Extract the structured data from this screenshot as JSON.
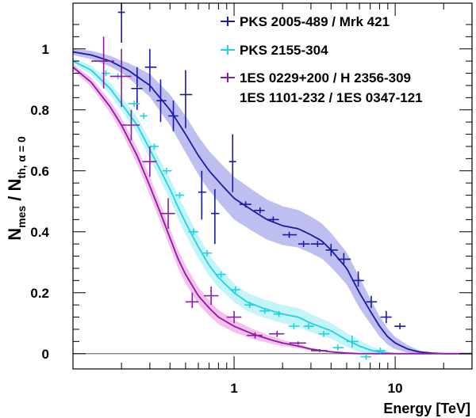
{
  "chart_data": {
    "type": "line",
    "xlabel": "Energy [TeV]",
    "ylabel": {
      "main": "N",
      "main_sub": "mes",
      "sep": " / N",
      "den_sub": "th, α = 0"
    },
    "xscale": "log",
    "xlim": [
      0.1,
      30
    ],
    "ylim": [
      -0.05,
      1.15
    ],
    "x_ticks": [
      1,
      10
    ],
    "x_tick_labels": [
      "1",
      "10"
    ],
    "y_ticks": [
      0,
      0.2,
      0.4,
      0.6,
      0.8,
      1
    ],
    "y_tick_labels": [
      "0",
      "0.2",
      "0.4",
      "0.6",
      "0.8",
      "1"
    ],
    "legend_position": "top-right",
    "series": [
      {
        "name": "PKS 2005-489 / Mrk 421",
        "color": "#1a1aa6",
        "band_color": "#b3b3ee",
        "curve": [
          [
            0.1,
            0.99
          ],
          [
            0.13,
            0.98
          ],
          [
            0.17,
            0.96
          ],
          [
            0.22,
            0.93
          ],
          [
            0.3,
            0.88
          ],
          [
            0.4,
            0.8
          ],
          [
            0.5,
            0.72
          ],
          [
            0.6,
            0.65
          ],
          [
            0.7,
            0.6
          ],
          [
            0.85,
            0.55
          ],
          [
            1.0,
            0.51
          ],
          [
            1.3,
            0.47
          ],
          [
            1.6,
            0.44
          ],
          [
            2.0,
            0.42
          ],
          [
            2.5,
            0.41
          ],
          [
            3.0,
            0.39
          ],
          [
            3.5,
            0.37
          ],
          [
            4.0,
            0.34
          ],
          [
            5.0,
            0.28
          ],
          [
            6.0,
            0.2
          ],
          [
            7.0,
            0.14
          ],
          [
            8.0,
            0.09
          ],
          [
            9.0,
            0.055
          ],
          [
            10.0,
            0.035
          ],
          [
            12.0,
            0.015
          ],
          [
            14.0,
            0.006
          ],
          [
            17.0,
            0.002
          ],
          [
            20.0,
            0.0
          ],
          [
            30.0,
            0.0
          ]
        ],
        "band_width": [
          [
            0.1,
            0.01
          ],
          [
            0.2,
            0.02
          ],
          [
            0.5,
            0.06
          ],
          [
            1.0,
            0.07
          ],
          [
            3.0,
            0.06
          ],
          [
            6.0,
            0.05
          ],
          [
            10.0,
            0.02
          ],
          [
            16.0,
            0.0
          ],
          [
            30.0,
            0.0
          ]
        ],
        "points": [
          {
            "x": 0.2,
            "y": 1.12,
            "xlo": 0.19,
            "xhi": 0.21,
            "ylo": 1.02,
            "yhi": 1.2
          },
          {
            "x": 0.25,
            "y": 0.87,
            "xlo": 0.23,
            "xhi": 0.27,
            "ylo": 0.8,
            "yhi": 0.94
          },
          {
            "x": 0.3,
            "y": 0.94,
            "xlo": 0.28,
            "xhi": 0.33,
            "ylo": 0.86,
            "yhi": 1.0
          },
          {
            "x": 0.35,
            "y": 0.83,
            "xlo": 0.33,
            "xhi": 0.38,
            "ylo": 0.76,
            "yhi": 0.9
          },
          {
            "x": 0.42,
            "y": 0.78,
            "xlo": 0.39,
            "xhi": 0.45,
            "ylo": 0.73,
            "yhi": 0.83
          },
          {
            "x": 0.5,
            "y": 0.85,
            "xlo": 0.46,
            "xhi": 0.55,
            "ylo": 0.74,
            "yhi": 0.93
          },
          {
            "x": 0.63,
            "y": 0.53,
            "xlo": 0.6,
            "xhi": 0.67,
            "ylo": 0.44,
            "yhi": 0.6
          },
          {
            "x": 0.76,
            "y": 0.46,
            "xlo": 0.72,
            "xhi": 0.81,
            "ylo": 0.36,
            "yhi": 0.54
          },
          {
            "x": 0.98,
            "y": 0.63,
            "xlo": 0.93,
            "xhi": 1.03,
            "ylo": 0.53,
            "yhi": 0.72
          },
          {
            "x": 1.18,
            "y": 0.49,
            "xlo": 1.08,
            "xhi": 1.28,
            "ylo": 0.48,
            "yhi": 0.5
          },
          {
            "x": 1.45,
            "y": 0.47,
            "xlo": 1.33,
            "xhi": 1.55,
            "ylo": 0.46,
            "yhi": 0.48
          },
          {
            "x": 1.75,
            "y": 0.44,
            "xlo": 1.6,
            "xhi": 1.9,
            "ylo": 0.43,
            "yhi": 0.45
          },
          {
            "x": 2.2,
            "y": 0.39,
            "xlo": 2.0,
            "xhi": 2.45,
            "ylo": 0.38,
            "yhi": 0.4
          },
          {
            "x": 2.7,
            "y": 0.36,
            "xlo": 2.5,
            "xhi": 2.95,
            "ylo": 0.35,
            "yhi": 0.37
          },
          {
            "x": 3.3,
            "y": 0.36,
            "xlo": 3.0,
            "xhi": 3.6,
            "ylo": 0.35,
            "yhi": 0.37
          },
          {
            "x": 4.0,
            "y": 0.34,
            "xlo": 3.7,
            "xhi": 4.4,
            "ylo": 0.32,
            "yhi": 0.36
          },
          {
            "x": 4.8,
            "y": 0.31,
            "xlo": 4.4,
            "xhi": 5.3,
            "ylo": 0.29,
            "yhi": 0.33
          },
          {
            "x": 5.9,
            "y": 0.24,
            "xlo": 5.4,
            "xhi": 6.4,
            "ylo": 0.22,
            "yhi": 0.27
          },
          {
            "x": 7.1,
            "y": 0.17,
            "xlo": 6.6,
            "xhi": 7.7,
            "ylo": 0.15,
            "yhi": 0.19
          },
          {
            "x": 8.8,
            "y": 0.12,
            "xlo": 8.1,
            "xhi": 9.5,
            "ylo": 0.1,
            "yhi": 0.14
          },
          {
            "x": 10.7,
            "y": 0.09,
            "xlo": 9.9,
            "xhi": 11.6,
            "ylo": 0.08,
            "yhi": 0.1
          }
        ]
      },
      {
        "name": "PKS 2155-304",
        "color": "#1fd3e0",
        "band_color": "#b8f2f6",
        "curve": [
          [
            0.1,
            0.96
          ],
          [
            0.13,
            0.93
          ],
          [
            0.17,
            0.87
          ],
          [
            0.2,
            0.82
          ],
          [
            0.25,
            0.75
          ],
          [
            0.3,
            0.67
          ],
          [
            0.35,
            0.6
          ],
          [
            0.4,
            0.54
          ],
          [
            0.45,
            0.48
          ],
          [
            0.5,
            0.43
          ],
          [
            0.6,
            0.35
          ],
          [
            0.7,
            0.29
          ],
          [
            0.8,
            0.25
          ],
          [
            1.0,
            0.2
          ],
          [
            1.2,
            0.17
          ],
          [
            1.5,
            0.15
          ],
          [
            2.0,
            0.13
          ],
          [
            2.5,
            0.12
          ],
          [
            3.0,
            0.1
          ],
          [
            4.0,
            0.075
          ],
          [
            5.0,
            0.045
          ],
          [
            6.0,
            0.025
          ],
          [
            7.0,
            0.012
          ],
          [
            8.0,
            0.005
          ],
          [
            10.0,
            0.0
          ],
          [
            30.0,
            0.0
          ]
        ],
        "band_width": [
          [
            0.1,
            0.01
          ],
          [
            0.3,
            0.03
          ],
          [
            0.5,
            0.04
          ],
          [
            1.0,
            0.03
          ],
          [
            3.0,
            0.03
          ],
          [
            6.0,
            0.02
          ],
          [
            10.0,
            0.0
          ],
          [
            30.0,
            0.0
          ]
        ],
        "points": [
          {
            "x": 0.16,
            "y": 0.92,
            "xlo": 0.15,
            "xhi": 0.17,
            "ylo": 0.91,
            "yhi": 0.93
          },
          {
            "x": 0.19,
            "y": 0.91,
            "xlo": 0.18,
            "xhi": 0.2,
            "ylo": 0.9,
            "yhi": 0.92
          },
          {
            "x": 0.24,
            "y": 0.82,
            "xlo": 0.22,
            "xhi": 0.26,
            "ylo": 0.81,
            "yhi": 0.83
          },
          {
            "x": 0.275,
            "y": 0.78,
            "xlo": 0.26,
            "xhi": 0.29,
            "ylo": 0.77,
            "yhi": 0.79
          },
          {
            "x": 0.32,
            "y": 0.68,
            "xlo": 0.3,
            "xhi": 0.34,
            "ylo": 0.67,
            "yhi": 0.69
          },
          {
            "x": 0.38,
            "y": 0.6,
            "xlo": 0.36,
            "xhi": 0.41,
            "ylo": 0.59,
            "yhi": 0.61
          },
          {
            "x": 0.46,
            "y": 0.52,
            "xlo": 0.43,
            "xhi": 0.49,
            "ylo": 0.51,
            "yhi": 0.53
          },
          {
            "x": 0.56,
            "y": 0.4,
            "xlo": 0.52,
            "xhi": 0.6,
            "ylo": 0.39,
            "yhi": 0.41
          },
          {
            "x": 0.68,
            "y": 0.33,
            "xlo": 0.64,
            "xhi": 0.73,
            "ylo": 0.32,
            "yhi": 0.34
          },
          {
            "x": 0.83,
            "y": 0.26,
            "xlo": 0.78,
            "xhi": 0.89,
            "ylo": 0.25,
            "yhi": 0.27
          },
          {
            "x": 1.02,
            "y": 0.21,
            "xlo": 0.95,
            "xhi": 1.09,
            "ylo": 0.2,
            "yhi": 0.22
          },
          {
            "x": 1.25,
            "y": 0.16,
            "xlo": 1.16,
            "xhi": 1.34,
            "ylo": 0.15,
            "yhi": 0.17
          },
          {
            "x": 1.55,
            "y": 0.14,
            "xlo": 1.44,
            "xhi": 1.66,
            "ylo": 0.13,
            "yhi": 0.15
          },
          {
            "x": 1.9,
            "y": 0.13,
            "xlo": 1.76,
            "xhi": 2.05,
            "ylo": 0.12,
            "yhi": 0.14
          },
          {
            "x": 2.35,
            "y": 0.09,
            "xlo": 2.18,
            "xhi": 2.55,
            "ylo": 0.08,
            "yhi": 0.1
          },
          {
            "x": 2.9,
            "y": 0.09,
            "xlo": 2.7,
            "xhi": 3.15,
            "ylo": 0.08,
            "yhi": 0.1
          },
          {
            "x": 3.6,
            "y": 0.065,
            "xlo": 3.35,
            "xhi": 3.9,
            "ylo": 0.055,
            "yhi": 0.075
          },
          {
            "x": 4.4,
            "y": 0.02,
            "xlo": 4.1,
            "xhi": 4.8,
            "ylo": 0.01,
            "yhi": 0.03
          },
          {
            "x": 5.4,
            "y": 0.04,
            "xlo": 5.0,
            "xhi": 5.9,
            "ylo": 0.02,
            "yhi": 0.06
          },
          {
            "x": 6.6,
            "y": -0.01,
            "xlo": 6.1,
            "xhi": 7.1,
            "ylo": -0.02,
            "yhi": 0.0
          },
          {
            "x": 8.1,
            "y": 0.01,
            "xlo": 7.5,
            "xhi": 8.7,
            "ylo": 0.0,
            "yhi": 0.02
          }
        ]
      },
      {
        "name": "1ES 0229+200 / H 2356-309",
        "name_line2": "1ES 1101-232 / 1ES 0347-121",
        "color": "#8b1aa6",
        "band_color": "#f4b3e8",
        "curve": [
          [
            0.1,
            0.94
          ],
          [
            0.13,
            0.89
          ],
          [
            0.17,
            0.81
          ],
          [
            0.2,
            0.75
          ],
          [
            0.25,
            0.65
          ],
          [
            0.3,
            0.55
          ],
          [
            0.35,
            0.46
          ],
          [
            0.4,
            0.38
          ],
          [
            0.45,
            0.31
          ],
          [
            0.5,
            0.26
          ],
          [
            0.6,
            0.19
          ],
          [
            0.7,
            0.15
          ],
          [
            0.8,
            0.12
          ],
          [
            1.0,
            0.09
          ],
          [
            1.3,
            0.065
          ],
          [
            1.7,
            0.045
          ],
          [
            2.0,
            0.035
          ],
          [
            2.5,
            0.025
          ],
          [
            3.0,
            0.015
          ],
          [
            4.0,
            0.006
          ],
          [
            5.0,
            0.002
          ],
          [
            6.0,
            0.0
          ],
          [
            30.0,
            0.0
          ]
        ],
        "band_width": [
          [
            0.1,
            0.01
          ],
          [
            0.3,
            0.03
          ],
          [
            0.5,
            0.03
          ],
          [
            1.0,
            0.02
          ],
          [
            2.0,
            0.01
          ],
          [
            4.0,
            0.0
          ],
          [
            30.0,
            0.0
          ]
        ],
        "points": [
          {
            "x": 0.155,
            "y": 0.96,
            "xlo": 0.13,
            "xhi": 0.18,
            "ylo": 0.87,
            "yhi": 1.04
          },
          {
            "x": 0.2,
            "y": 0.91,
            "xlo": 0.17,
            "xhi": 0.23,
            "ylo": 0.81,
            "yhi": 1.0
          },
          {
            "x": 0.23,
            "y": 0.75,
            "xlo": 0.2,
            "xhi": 0.26,
            "ylo": 0.7,
            "yhi": 0.8
          },
          {
            "x": 0.3,
            "y": 0.63,
            "xlo": 0.27,
            "xhi": 0.33,
            "ylo": 0.58,
            "yhi": 0.68
          },
          {
            "x": 0.39,
            "y": 0.46,
            "xlo": 0.35,
            "xhi": 0.43,
            "ylo": 0.41,
            "yhi": 0.51
          },
          {
            "x": 0.55,
            "y": 0.17,
            "xlo": 0.5,
            "xhi": 0.6,
            "ylo": 0.15,
            "yhi": 0.2
          },
          {
            "x": 0.72,
            "y": 0.19,
            "xlo": 0.65,
            "xhi": 0.8,
            "ylo": 0.16,
            "yhi": 0.22
          },
          {
            "x": 1.0,
            "y": 0.12,
            "xlo": 0.9,
            "xhi": 1.11,
            "ylo": 0.1,
            "yhi": 0.14
          },
          {
            "x": 1.35,
            "y": 0.06,
            "xlo": 1.2,
            "xhi": 1.5,
            "ylo": 0.05,
            "yhi": 0.07
          },
          {
            "x": 1.85,
            "y": 0.065,
            "xlo": 1.65,
            "xhi": 2.05,
            "ylo": 0.055,
            "yhi": 0.075
          },
          {
            "x": 2.5,
            "y": 0.035,
            "xlo": 2.2,
            "xhi": 2.8,
            "ylo": 0.03,
            "yhi": 0.04
          },
          {
            "x": 3.4,
            "y": 0.01,
            "xlo": 3.0,
            "xhi": 3.8,
            "ylo": 0.005,
            "yhi": 0.015
          }
        ]
      }
    ]
  }
}
